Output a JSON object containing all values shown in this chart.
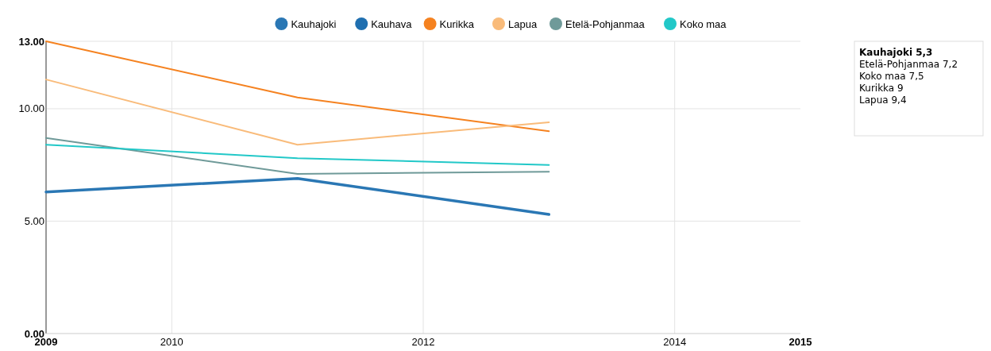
{
  "chart_data": {
    "type": "line",
    "x": [
      2009,
      2011,
      2013
    ],
    "xlim": [
      2009,
      2015
    ],
    "xticks": [
      2009,
      2010,
      2012,
      2014,
      2015
    ],
    "ylim": [
      0,
      13
    ],
    "yticks": [
      {
        "value": 0,
        "label": "0.00"
      },
      {
        "value": 5,
        "label": "5.00"
      },
      {
        "value": 10,
        "label": "10.00"
      },
      {
        "value": 13,
        "label": "13.00"
      }
    ],
    "grid": true,
    "legend": "top",
    "marker": "none",
    "line_style": "solid",
    "series": [
      {
        "name": "Kauhajoki",
        "color": "#2a77b4",
        "values": [
          6.3,
          6.9,
          5.3
        ]
      },
      {
        "name": "Kauhava",
        "color": "#1f6fb0",
        "values": [
          null,
          null,
          null
        ]
      },
      {
        "name": "Kurikka",
        "color": "#f58220",
        "values": [
          13.0,
          10.5,
          9.0
        ]
      },
      {
        "name": "Lapua",
        "color": "#f9bb7a",
        "values": [
          11.3,
          8.4,
          9.4
        ]
      },
      {
        "name": "Etelä-Pohjanmaa",
        "color": "#6f9a99",
        "values": [
          8.7,
          7.1,
          7.2
        ]
      },
      {
        "name": "Koko maa",
        "color": "#22c8c8",
        "values": [
          8.4,
          7.8,
          7.5
        ]
      }
    ],
    "annotations": [
      "Kauhajoki 5,3",
      "Etelä-Pohjanmaa 7,2",
      "Koko maa 7,5",
      "Kurikka 9",
      "Lapua 9,4"
    ]
  }
}
